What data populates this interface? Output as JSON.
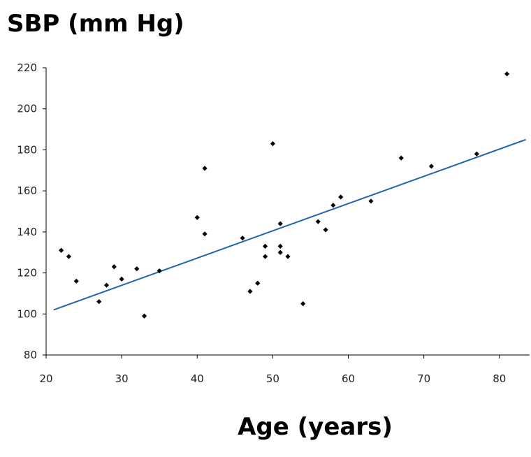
{
  "chart_data": {
    "type": "scatter",
    "title": "",
    "ylabel": "SBP (mm Hg)",
    "xlabel": "Age (years)",
    "xlim": [
      20,
      84
    ],
    "ylim": [
      80,
      220
    ],
    "x_ticks": [
      20,
      30,
      40,
      50,
      60,
      70,
      80
    ],
    "y_ticks": [
      80,
      100,
      120,
      140,
      160,
      180,
      200,
      220
    ],
    "grid": false,
    "legend": "none",
    "series": [
      {
        "points": [
          {
            "x": 22,
            "y": 131
          },
          {
            "x": 23,
            "y": 128
          },
          {
            "x": 24,
            "y": 116
          },
          {
            "x": 27,
            "y": 106
          },
          {
            "x": 28,
            "y": 114
          },
          {
            "x": 29,
            "y": 123
          },
          {
            "x": 30,
            "y": 117
          },
          {
            "x": 32,
            "y": 122
          },
          {
            "x": 33,
            "y": 99
          },
          {
            "x": 35,
            "y": 121
          },
          {
            "x": 40,
            "y": 147
          },
          {
            "x": 41,
            "y": 139
          },
          {
            "x": 41,
            "y": 171
          },
          {
            "x": 46,
            "y": 137
          },
          {
            "x": 47,
            "y": 111
          },
          {
            "x": 48,
            "y": 115
          },
          {
            "x": 49,
            "y": 133
          },
          {
            "x": 49,
            "y": 128
          },
          {
            "x": 50,
            "y": 183
          },
          {
            "x": 51,
            "y": 130
          },
          {
            "x": 51,
            "y": 133
          },
          {
            "x": 51,
            "y": 144
          },
          {
            "x": 52,
            "y": 128
          },
          {
            "x": 54,
            "y": 105
          },
          {
            "x": 56,
            "y": 145
          },
          {
            "x": 57,
            "y": 141
          },
          {
            "x": 58,
            "y": 153
          },
          {
            "x": 59,
            "y": 157
          },
          {
            "x": 63,
            "y": 155
          },
          {
            "x": 67,
            "y": 176
          },
          {
            "x": 71,
            "y": 172
          },
          {
            "x": 77,
            "y": 178
          },
          {
            "x": 81,
            "y": 217
          }
        ]
      }
    ],
    "trendline": {
      "x": [
        21,
        83.5
      ],
      "y": [
        102,
        185
      ]
    },
    "colors": {
      "points": "#000000",
      "trendline": "#2166ac",
      "axis": "#000000"
    }
  }
}
